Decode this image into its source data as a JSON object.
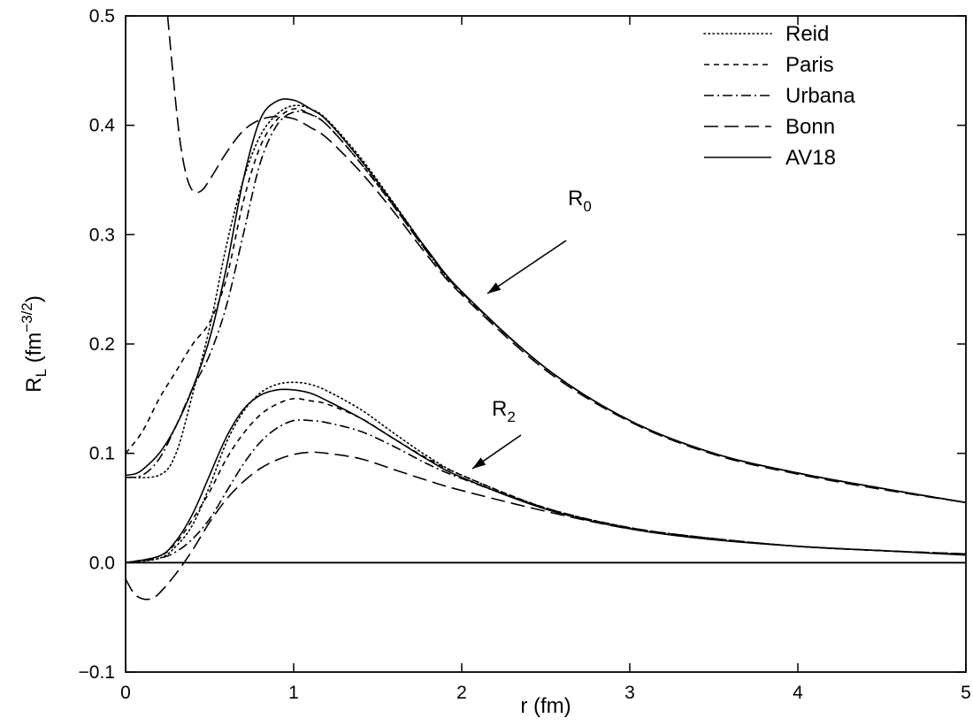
{
  "chart_data": {
    "type": "line",
    "xlabel": {
      "main": "r (fm)"
    },
    "ylabel": {
      "main": "R",
      "sub": "L",
      "unit_open": " (fm",
      "unit_sup": "−3/2",
      "unit_close": ")"
    },
    "xlim": [
      0,
      5
    ],
    "ylim": [
      -0.1,
      0.5
    ],
    "xticks": [
      0,
      1,
      2,
      3,
      4,
      5
    ],
    "xtick_labels": [
      "0",
      "1",
      "2",
      "3",
      "4",
      "5"
    ],
    "yticks": [
      -0.1,
      0.0,
      0.1,
      0.2,
      0.3,
      0.4,
      0.5
    ],
    "ytick_labels": [
      "−0.1",
      "0.0",
      "0.1",
      "0.2",
      "0.3",
      "0.4",
      "0.5"
    ],
    "grid": false,
    "legend_position": "top-right",
    "annotations": [
      {
        "main": "R",
        "sub": "0"
      },
      {
        "main": "R",
        "sub": "2"
      }
    ],
    "series": [
      {
        "name": "Reid",
        "style": "dotted",
        "R0": {
          "x": [
            0.0,
            0.2,
            0.3,
            0.4,
            0.5,
            0.6,
            0.7,
            0.8,
            0.9,
            1.0,
            1.1,
            1.2,
            1.4,
            1.6,
            1.8,
            2.0,
            2.5,
            3.0,
            3.5,
            4.0,
            4.5,
            5.0
          ],
          "y": [
            0.078,
            0.08,
            0.1,
            0.155,
            0.215,
            0.29,
            0.35,
            0.39,
            0.41,
            0.418,
            0.415,
            0.405,
            0.37,
            0.328,
            0.285,
            0.248,
            0.178,
            0.13,
            0.1,
            0.082,
            0.068,
            0.055
          ]
        },
        "R2": {
          "x": [
            0.0,
            0.2,
            0.3,
            0.4,
            0.5,
            0.6,
            0.7,
            0.8,
            0.9,
            1.0,
            1.1,
            1.2,
            1.4,
            1.6,
            1.8,
            2.0,
            2.5,
            3.0,
            3.5,
            4.0,
            4.5,
            5.0
          ],
          "y": [
            0.0,
            0.004,
            0.015,
            0.035,
            0.07,
            0.11,
            0.138,
            0.155,
            0.163,
            0.165,
            0.163,
            0.157,
            0.14,
            0.118,
            0.097,
            0.08,
            0.05,
            0.032,
            0.022,
            0.015,
            0.011,
            0.008
          ]
        }
      },
      {
        "name": "Paris",
        "style": "short-dash",
        "R0": {
          "x": [
            0.0,
            0.1,
            0.2,
            0.3,
            0.4,
            0.5,
            0.6,
            0.7,
            0.8,
            0.9,
            1.0,
            1.1,
            1.2,
            1.4,
            1.6,
            1.8,
            2.0,
            2.5,
            3.0,
            3.5,
            4.0,
            4.5,
            5.0
          ],
          "y": [
            0.1,
            0.12,
            0.15,
            0.175,
            0.2,
            0.22,
            0.26,
            0.33,
            0.38,
            0.405,
            0.415,
            0.41,
            0.4,
            0.365,
            0.325,
            0.283,
            0.247,
            0.178,
            0.13,
            0.1,
            0.082,
            0.068,
            0.055
          ]
        },
        "R2": {
          "x": [
            0.0,
            0.2,
            0.3,
            0.4,
            0.5,
            0.6,
            0.7,
            0.8,
            0.9,
            1.0,
            1.1,
            1.2,
            1.4,
            1.6,
            1.8,
            2.0,
            2.5,
            3.0,
            3.5,
            4.0,
            4.5,
            5.0
          ],
          "y": [
            0.0,
            0.006,
            0.018,
            0.04,
            0.065,
            0.095,
            0.118,
            0.135,
            0.145,
            0.15,
            0.148,
            0.145,
            0.132,
            0.113,
            0.095,
            0.08,
            0.05,
            0.032,
            0.022,
            0.015,
            0.011,
            0.008
          ]
        }
      },
      {
        "name": "Urbana",
        "style": "dash-dot",
        "R0": {
          "x": [
            0.0,
            0.1,
            0.2,
            0.3,
            0.4,
            0.5,
            0.6,
            0.7,
            0.8,
            0.9,
            1.0,
            1.1,
            1.2,
            1.4,
            1.6,
            1.8,
            2.0,
            2.5,
            3.0,
            3.5,
            4.0,
            4.5,
            5.0
          ],
          "y": [
            0.078,
            0.08,
            0.095,
            0.125,
            0.16,
            0.19,
            0.235,
            0.3,
            0.365,
            0.4,
            0.412,
            0.41,
            0.4,
            0.365,
            0.325,
            0.283,
            0.247,
            0.178,
            0.13,
            0.1,
            0.082,
            0.068,
            0.055
          ]
        },
        "R2": {
          "x": [
            0.0,
            0.2,
            0.3,
            0.4,
            0.5,
            0.6,
            0.7,
            0.8,
            0.9,
            1.0,
            1.1,
            1.2,
            1.4,
            1.6,
            1.8,
            2.0,
            2.5,
            3.0,
            3.5,
            4.0,
            4.5,
            5.0
          ],
          "y": [
            0.0,
            0.004,
            0.01,
            0.022,
            0.04,
            0.065,
            0.09,
            0.11,
            0.123,
            0.13,
            0.13,
            0.128,
            0.12,
            0.106,
            0.09,
            0.077,
            0.05,
            0.032,
            0.022,
            0.015,
            0.011,
            0.008
          ]
        }
      },
      {
        "name": "Bonn",
        "style": "long-dash",
        "R0": {
          "x": [
            0.25,
            0.28,
            0.32,
            0.36,
            0.4,
            0.45,
            0.5,
            0.6,
            0.7,
            0.8,
            0.9,
            1.0,
            1.1,
            1.2,
            1.4,
            1.6,
            1.8,
            2.0,
            2.5,
            3.0,
            3.5,
            4.0,
            4.5,
            5.0
          ],
          "y": [
            0.5,
            0.45,
            0.39,
            0.355,
            0.34,
            0.34,
            0.35,
            0.375,
            0.395,
            0.405,
            0.408,
            0.406,
            0.398,
            0.388,
            0.357,
            0.32,
            0.28,
            0.245,
            0.176,
            0.129,
            0.099,
            0.081,
            0.067,
            0.055
          ]
        },
        "R2": {
          "x": [
            0.0,
            0.05,
            0.1,
            0.15,
            0.2,
            0.3,
            0.4,
            0.5,
            0.6,
            0.7,
            0.8,
            0.9,
            1.0,
            1.1,
            1.2,
            1.4,
            1.6,
            1.8,
            2.0,
            2.5,
            3.0,
            3.5,
            4.0,
            4.5,
            5.0
          ],
          "y": [
            -0.015,
            -0.028,
            -0.033,
            -0.033,
            -0.028,
            -0.01,
            0.012,
            0.037,
            0.058,
            0.074,
            0.086,
            0.094,
            0.099,
            0.101,
            0.1,
            0.095,
            0.085,
            0.075,
            0.066,
            0.047,
            0.031,
            0.022,
            0.015,
            0.011,
            0.008
          ]
        }
      },
      {
        "name": "AV18",
        "style": "solid",
        "R0": {
          "x": [
            0.0,
            0.05,
            0.1,
            0.2,
            0.3,
            0.4,
            0.5,
            0.6,
            0.7,
            0.8,
            0.9,
            1.0,
            1.1,
            1.2,
            1.4,
            1.6,
            1.8,
            2.0,
            2.5,
            3.0,
            3.5,
            4.0,
            4.5,
            5.0
          ],
          "y": [
            0.08,
            0.081,
            0.085,
            0.1,
            0.125,
            0.16,
            0.205,
            0.27,
            0.35,
            0.405,
            0.422,
            0.423,
            0.415,
            0.404,
            0.368,
            0.327,
            0.285,
            0.248,
            0.178,
            0.13,
            0.1,
            0.082,
            0.068,
            0.055
          ]
        },
        "R2": {
          "x": [
            0.0,
            0.2,
            0.3,
            0.4,
            0.5,
            0.6,
            0.7,
            0.8,
            0.9,
            1.0,
            1.1,
            1.2,
            1.4,
            1.6,
            1.8,
            2.0,
            2.5,
            3.0,
            3.5,
            4.0,
            4.5,
            5.0
          ],
          "y": [
            0.0,
            0.006,
            0.02,
            0.045,
            0.08,
            0.115,
            0.14,
            0.153,
            0.158,
            0.158,
            0.155,
            0.148,
            0.132,
            0.113,
            0.094,
            0.078,
            0.049,
            0.031,
            0.021,
            0.015,
            0.011,
            0.007
          ]
        }
      }
    ]
  }
}
